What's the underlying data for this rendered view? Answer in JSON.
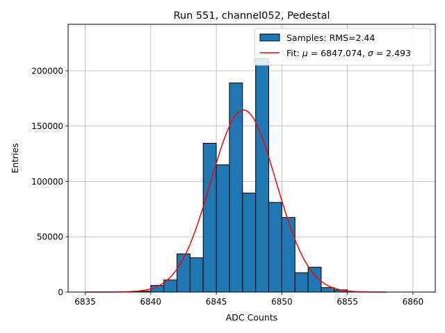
{
  "chart_data": {
    "type": "bar",
    "title": "Run 551, channel052, Pedestal",
    "xlabel": "ADC Counts",
    "ylabel": "Entries",
    "xlim": [
      6833.7,
      6861.7
    ],
    "ylim": [
      0,
      242000
    ],
    "grid": true,
    "legend_position": "top-right",
    "x_ticks": [
      {
        "value": 6835,
        "label": "6835"
      },
      {
        "value": 6840,
        "label": "6840"
      },
      {
        "value": 6845,
        "label": "6845"
      },
      {
        "value": 6850,
        "label": "6850"
      },
      {
        "value": 6855,
        "label": "6855"
      },
      {
        "value": 6860,
        "label": "6860"
      }
    ],
    "y_ticks": [
      {
        "value": 0,
        "label": "0"
      },
      {
        "value": 50000,
        "label": "50000"
      },
      {
        "value": 100000,
        "label": "100000"
      },
      {
        "value": 150000,
        "label": "150000"
      },
      {
        "value": 200000,
        "label": "200000"
      }
    ],
    "series": [
      {
        "name": "Samples: RMS=2.44",
        "kind": "histogram",
        "color": "#1f77b4",
        "edge_color": "#000000",
        "bin_edges": [
          6835.0,
          6836.0,
          6837.0,
          6838.0,
          6839.0,
          6840.0,
          6841.0,
          6842.0,
          6843.0,
          6844.0,
          6845.0,
          6846.0,
          6847.0,
          6848.0,
          6849.0,
          6850.0,
          6851.0,
          6852.0,
          6853.0,
          6854.0,
          6855.0,
          6856.0,
          6857.0,
          6858.0
        ],
        "counts": [
          0,
          0,
          0,
          0,
          800,
          6000,
          11000,
          34500,
          31000,
          134500,
          115000,
          189000,
          89500,
          211000,
          81000,
          67500,
          17500,
          22500,
          4000,
          2000,
          0,
          0,
          0
        ]
      },
      {
        "name": "Fit: μ = 6847.074, σ = 2.493",
        "legend_prefix": "Fit: ",
        "legend_mu": "μ",
        "legend_mid": " = 6847.074, ",
        "legend_sigma": "σ",
        "legend_suffix": " = 2.493",
        "kind": "gaussian",
        "color": "#ff0000",
        "mu": 6847.074,
        "sigma": 2.493,
        "amplitude": 164500,
        "x_range": [
          6835,
          6858
        ]
      }
    ]
  }
}
